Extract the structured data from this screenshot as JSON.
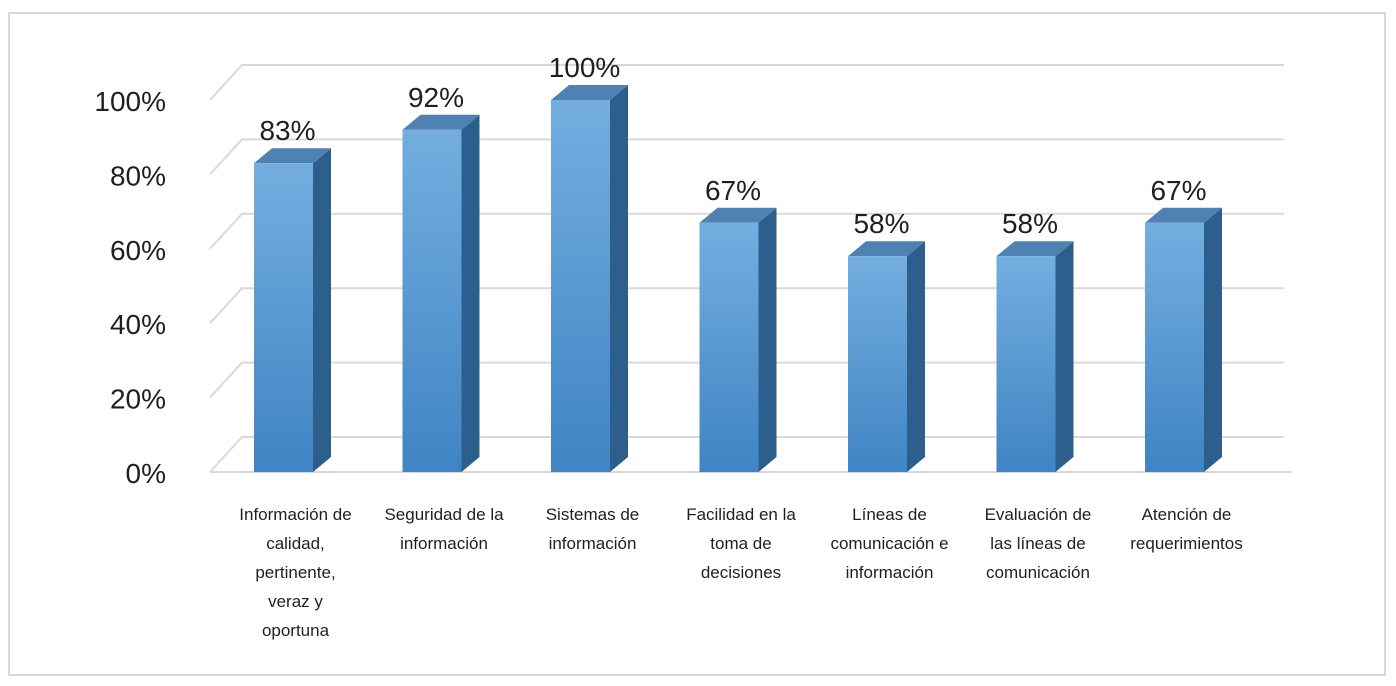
{
  "chart_data": {
    "type": "bar",
    "style": "3d-column",
    "categories": [
      "Información de calidad, pertinente, veraz y oportuna",
      "Seguridad de la información",
      "Sistemas de información",
      "Facilidad en la toma de decisiones",
      "Líneas de comunicación e información",
      "Evaluación de las líneas de comunicación",
      "Atención de requerimientos"
    ],
    "category_lines": [
      [
        "Información de",
        "calidad,",
        "pertinente,",
        "veraz y",
        "oportuna"
      ],
      [
        "Seguridad de la",
        "información"
      ],
      [
        "Sistemas de",
        "información"
      ],
      [
        "Facilidad en la",
        "toma de",
        "decisiones"
      ],
      [
        "Líneas de",
        "comunicación e",
        "información"
      ],
      [
        "Evaluación de",
        "las líneas de",
        "comunicación"
      ],
      [
        "Atención de",
        "requerimientos"
      ]
    ],
    "values": [
      83,
      92,
      100,
      67,
      58,
      58,
      67
    ],
    "data_labels": [
      "83%",
      "92%",
      "100%",
      "67%",
      "58%",
      "58%",
      "67%"
    ],
    "y_ticks": [
      "0%",
      "20%",
      "40%",
      "60%",
      "80%",
      "100%"
    ],
    "y_tick_values": [
      0,
      20,
      40,
      60,
      80,
      100
    ],
    "ylim": [
      0,
      100
    ],
    "title": "",
    "xlabel": "",
    "ylabel": "",
    "grid": true,
    "legend": "none",
    "colors": {
      "front_top": "#74aee0",
      "front_bottom": "#3f84c4",
      "side": "#2d5f8d",
      "top": "#4f82b3",
      "grid": "#d9d9d9",
      "floor": "#d9d9d9"
    }
  }
}
